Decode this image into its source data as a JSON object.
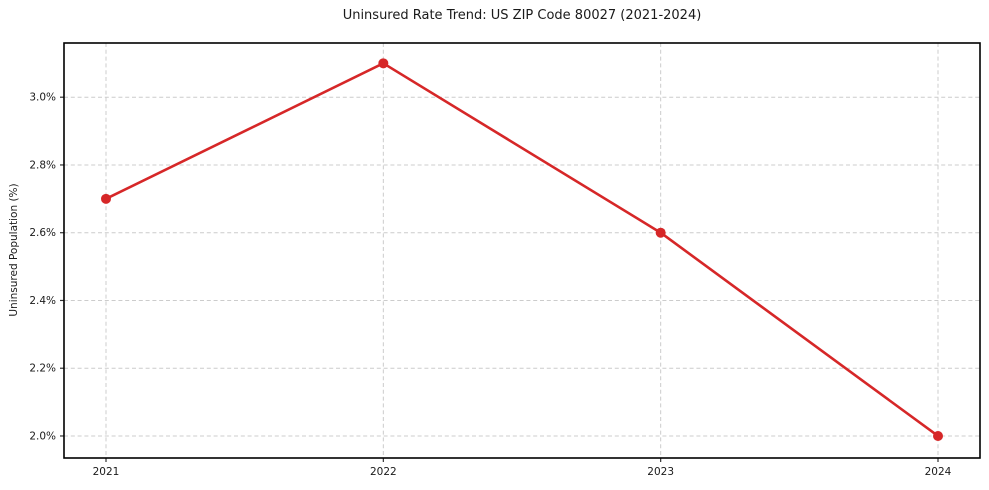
{
  "page": {
    "background": "#ffffff"
  },
  "chart_data": {
    "type": "line",
    "title": "Uninsured Rate Trend: US ZIP Code 80027 (2021-2024)",
    "xlabel": "",
    "ylabel": "Uninsured Population (%)",
    "categories": [
      "2021",
      "2022",
      "2023",
      "2024"
    ],
    "values": [
      2.7,
      3.1,
      2.6,
      2.0
    ],
    "yticks": {
      "values": [
        2.0,
        2.2,
        2.4,
        2.6,
        2.8,
        3.0
      ],
      "labels": [
        "2.0%",
        "2.2%",
        "2.4%",
        "2.6%",
        "2.8%",
        "3.0%"
      ]
    },
    "ylim": [
      1.935,
      3.16
    ],
    "legend_position": "none",
    "grid": {
      "visible": true,
      "style": "dashed",
      "color": "#cccccc"
    },
    "line": {
      "color": "#d62728",
      "width": 2.6,
      "marker": "circle",
      "marker_size": 5
    },
    "axis": {
      "spine_color": "#000000",
      "tick_color": "#333333",
      "text_color": "#1a1a1a"
    }
  }
}
